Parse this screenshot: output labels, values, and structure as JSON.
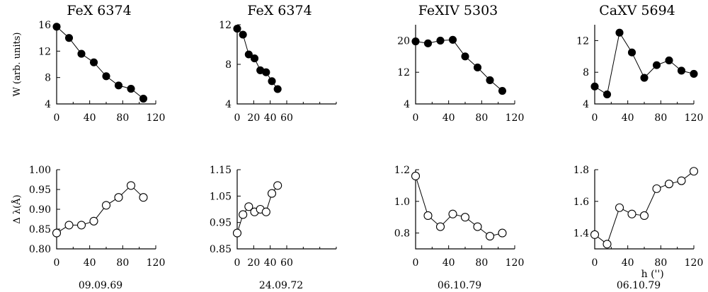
{
  "chart_data": [
    {
      "type": "line",
      "title": "FeX 6374",
      "ylabel": "W (arb. units)",
      "xlabel": "",
      "marker": "filled-circle",
      "x": [
        0,
        15,
        30,
        45,
        60,
        75,
        90,
        105
      ],
      "y": [
        15.7,
        14.0,
        11.6,
        10.3,
        8.2,
        6.8,
        6.3,
        4.8
      ],
      "xlim": [
        0,
        120
      ],
      "ylim": [
        4,
        16
      ],
      "xticks": [
        0,
        40,
        80,
        120
      ],
      "yticks": [
        4,
        8,
        12,
        16
      ],
      "caption": ""
    },
    {
      "type": "line",
      "title": "FeX 6374",
      "ylabel": "",
      "xlabel": "",
      "marker": "filled-circle",
      "x": [
        0,
        7,
        14,
        21,
        28,
        35,
        42,
        49
      ],
      "y": [
        11.6,
        11.0,
        9.0,
        8.6,
        7.4,
        7.2,
        6.3,
        5.5
      ],
      "xlim": [
        0,
        120
      ],
      "ylim": [
        4,
        12
      ],
      "xticks": [
        0,
        20,
        40,
        60
      ],
      "yticks": [
        4,
        8,
        12
      ],
      "caption": ""
    },
    {
      "type": "line",
      "title": "FeXIV 5303",
      "ylabel": "",
      "xlabel": "",
      "marker": "filled-circle",
      "x": [
        0,
        15,
        30,
        45,
        60,
        75,
        90,
        105
      ],
      "y": [
        19.8,
        19.3,
        20.0,
        20.2,
        16.0,
        13.2,
        10.0,
        7.3
      ],
      "xlim": [
        0,
        120
      ],
      "ylim": [
        4,
        24
      ],
      "xticks": [
        0,
        40,
        80,
        120
      ],
      "yticks": [
        4,
        12,
        20
      ],
      "caption": ""
    },
    {
      "type": "line",
      "title": "CaXV 5694",
      "ylabel": "",
      "xlabel": "",
      "marker": "filled-circle",
      "x": [
        0,
        15,
        30,
        45,
        60,
        75,
        90,
        105,
        120
      ],
      "y": [
        6.2,
        5.2,
        13.0,
        10.5,
        7.3,
        8.9,
        9.5,
        8.2,
        7.8
      ],
      "xlim": [
        0,
        120
      ],
      "ylim": [
        4,
        14
      ],
      "xticks": [
        0,
        40,
        80,
        120
      ],
      "yticks": [
        4,
        8,
        12
      ],
      "caption": ""
    },
    {
      "type": "line",
      "title": "",
      "ylabel": "Δ λ(Å)",
      "xlabel": "",
      "marker": "open-circle",
      "x": [
        0,
        15,
        30,
        45,
        60,
        75,
        90,
        105
      ],
      "y": [
        0.84,
        0.86,
        0.86,
        0.87,
        0.91,
        0.93,
        0.96,
        0.93
      ],
      "xlim": [
        0,
        120
      ],
      "ylim": [
        0.8,
        1.0
      ],
      "xticks": [
        0,
        40,
        80,
        120
      ],
      "yticks": [
        0.8,
        0.85,
        0.9,
        0.95,
        1.0
      ],
      "ytick_decimals": 2,
      "caption": "09.09.69"
    },
    {
      "type": "line",
      "title": "",
      "ylabel": "",
      "xlabel": "",
      "marker": "open-circle",
      "x": [
        0,
        7,
        14,
        21,
        28,
        35,
        42,
        49
      ],
      "y": [
        0.91,
        0.98,
        1.01,
        0.99,
        1.0,
        0.99,
        1.06,
        1.09
      ],
      "xlim": [
        0,
        120
      ],
      "ylim": [
        0.85,
        1.15
      ],
      "xticks": [
        0,
        20,
        40,
        60
      ],
      "yticks": [
        0.85,
        0.95,
        1.05,
        1.15
      ],
      "ytick_decimals": 2,
      "caption": "24.09.72"
    },
    {
      "type": "line",
      "title": "",
      "ylabel": "",
      "xlabel": "",
      "marker": "open-circle",
      "x": [
        0,
        15,
        30,
        45,
        60,
        75,
        90,
        105
      ],
      "y": [
        1.16,
        0.91,
        0.84,
        0.92,
        0.9,
        0.84,
        0.78,
        0.8
      ],
      "xlim": [
        0,
        120
      ],
      "ylim": [
        0.7,
        1.2
      ],
      "xticks": [
        0,
        40,
        80,
        120
      ],
      "yticks": [
        0.8,
        1.0,
        1.2
      ],
      "ytick_decimals": 1,
      "caption": "06.10.79"
    },
    {
      "type": "line",
      "title": "",
      "ylabel": "",
      "xlabel": "h ('')",
      "marker": "open-circle",
      "x": [
        0,
        15,
        30,
        45,
        60,
        75,
        90,
        105,
        120
      ],
      "y": [
        1.39,
        1.33,
        1.56,
        1.52,
        1.51,
        1.68,
        1.71,
        1.73,
        1.79
      ],
      "xlim": [
        0,
        120
      ],
      "ylim": [
        1.3,
        1.8
      ],
      "xticks": [
        0,
        40,
        80,
        120
      ],
      "yticks": [
        1.4,
        1.6,
        1.8
      ],
      "ytick_decimals": 1,
      "caption": "06.10.79"
    }
  ]
}
